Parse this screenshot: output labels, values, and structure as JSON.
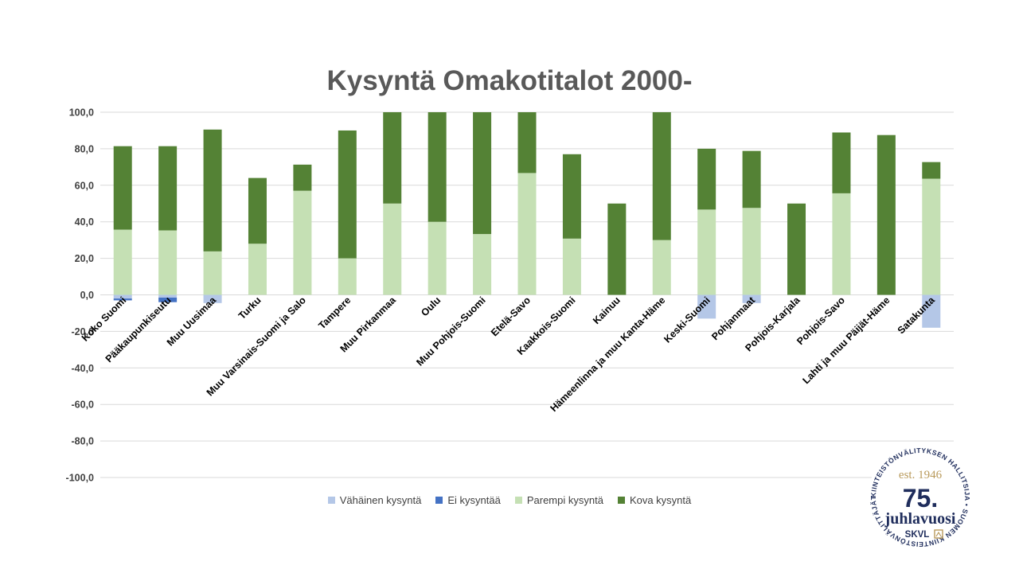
{
  "chart_data": {
    "type": "bar",
    "stacked": true,
    "title": "Kysyntä Omakotitalot 2000-",
    "xlabel": "",
    "ylabel": "",
    "ylim": [
      -100,
      100
    ],
    "yticks": [
      "100,0",
      "80,0",
      "60,0",
      "40,0",
      "20,0",
      "0,0",
      "-20,0",
      "-40,0",
      "-60,0",
      "-80,0",
      "-100,0"
    ],
    "ytick_values": [
      100,
      80,
      60,
      40,
      20,
      0,
      -20,
      -40,
      -60,
      -80,
      -100
    ],
    "grid": true,
    "legend_position": "bottom",
    "categories": [
      "Koko Suomi",
      "Pääkaupunkiseutu",
      "Muu Uusimaa",
      "Turku",
      "Muu Varsinais-Suomi ja Salo",
      "Tampere",
      "Muu Pirkanmaa",
      "Oulu",
      "Muu Pohjois-Suomi",
      "Etelä-Savo",
      "Kaakkois-Suomi",
      "Kainuu",
      "Hämeenlinna ja muu Kanta-Häme",
      "Keski-Suomi",
      "Pohjanmaat",
      "Pohjois-Karjala",
      "Pohjois-Savo",
      "Lahti ja muu Päijät-Häme",
      "Satakunta"
    ],
    "series": [
      {
        "name": "Vähäinen kysyntä",
        "color": "#b4c7e7",
        "values": [
          -2,
          -1.5,
          -4.5,
          0,
          0,
          0,
          0,
          0,
          0,
          0,
          0,
          0,
          0,
          -13,
          -4.5,
          0,
          0,
          0,
          -18
        ]
      },
      {
        "name": "Ei kysyntää",
        "color": "#4472c4",
        "values": [
          -1,
          -2.5,
          0,
          0,
          0,
          0,
          0,
          0,
          0,
          0,
          0,
          0,
          0,
          0,
          0,
          0,
          0,
          0,
          0
        ]
      },
      {
        "name": "Parempi kysyntä",
        "color": "#c5e0b4",
        "values": [
          35.7,
          35.3,
          23.8,
          28,
          57,
          20,
          50,
          40,
          33.3,
          66.7,
          30.8,
          0,
          30,
          46.7,
          47.6,
          0,
          55.6,
          0,
          63.6
        ]
      },
      {
        "name": "Kova kysyntä",
        "color": "#548235",
        "values": [
          45.7,
          46.1,
          66.7,
          36,
          14.3,
          70,
          50,
          60,
          66.7,
          33.3,
          46.2,
          50,
          70,
          33.3,
          31.2,
          50,
          33.3,
          87.5,
          9.1
        ]
      }
    ]
  },
  "logo": {
    "ring_text": "KIINTEISTÖNVÄLITYKSEN HALLITSIJA • SUOMEN KIINTEISTÖNVÄLITTÄJÄT RY •",
    "est": "est. 1946",
    "number": "75.",
    "word": "juhlavuosi",
    "brand": "SKVL",
    "color_navy": "#1f2d5c",
    "color_gold": "#b99a5b"
  }
}
